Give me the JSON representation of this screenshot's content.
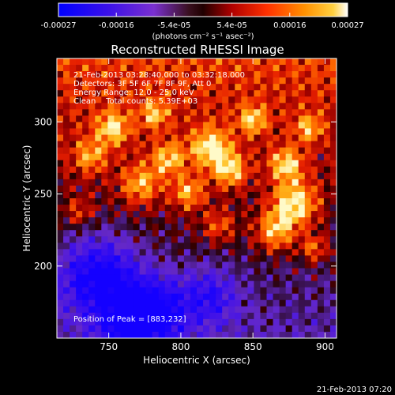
{
  "chart_data": {
    "type": "heatmap",
    "title": "Reconstructed RHESSI Image",
    "xlabel": "Heliocentric X (arcsec)",
    "ylabel": "Heliocentric Y (arcsec)",
    "xlim": [
      714,
      908
    ],
    "ylim": [
      150,
      344
    ],
    "x_ticks": [
      750,
      800,
      850,
      900
    ],
    "y_ticks": [
      200,
      250,
      300
    ],
    "colorbar": {
      "ticks": [
        "-0.00027",
        "-0.00016",
        "-5.4e-05",
        "5.4e-05",
        "0.00016",
        "0.00027"
      ],
      "unit_label": "(photons cm⁻² s⁻¹ asec⁻²)",
      "range": [
        -0.00027,
        0.00027
      ],
      "colormap": [
        "#0000ff",
        "#7a30d0",
        "#200000",
        "#b00000",
        "#ff5000",
        "#ffb000",
        "#ffffff"
      ]
    },
    "annotations": [
      "21-Feb-2013 03:28:40.000 to 03:32:18.000",
      "Detectors: 3F 5F 6F 7F 8F 9F, Att 0",
      "Energy Range: 12.0 - 25.0 keV",
      "Clean    Total counts: 5.39E+03"
    ],
    "peak": {
      "label": "Position of Peak = [883,232]",
      "x": 883,
      "y": 232
    },
    "grid": false,
    "legend": "none"
  },
  "footer_timestamp": "21-Feb-2013 07:20"
}
